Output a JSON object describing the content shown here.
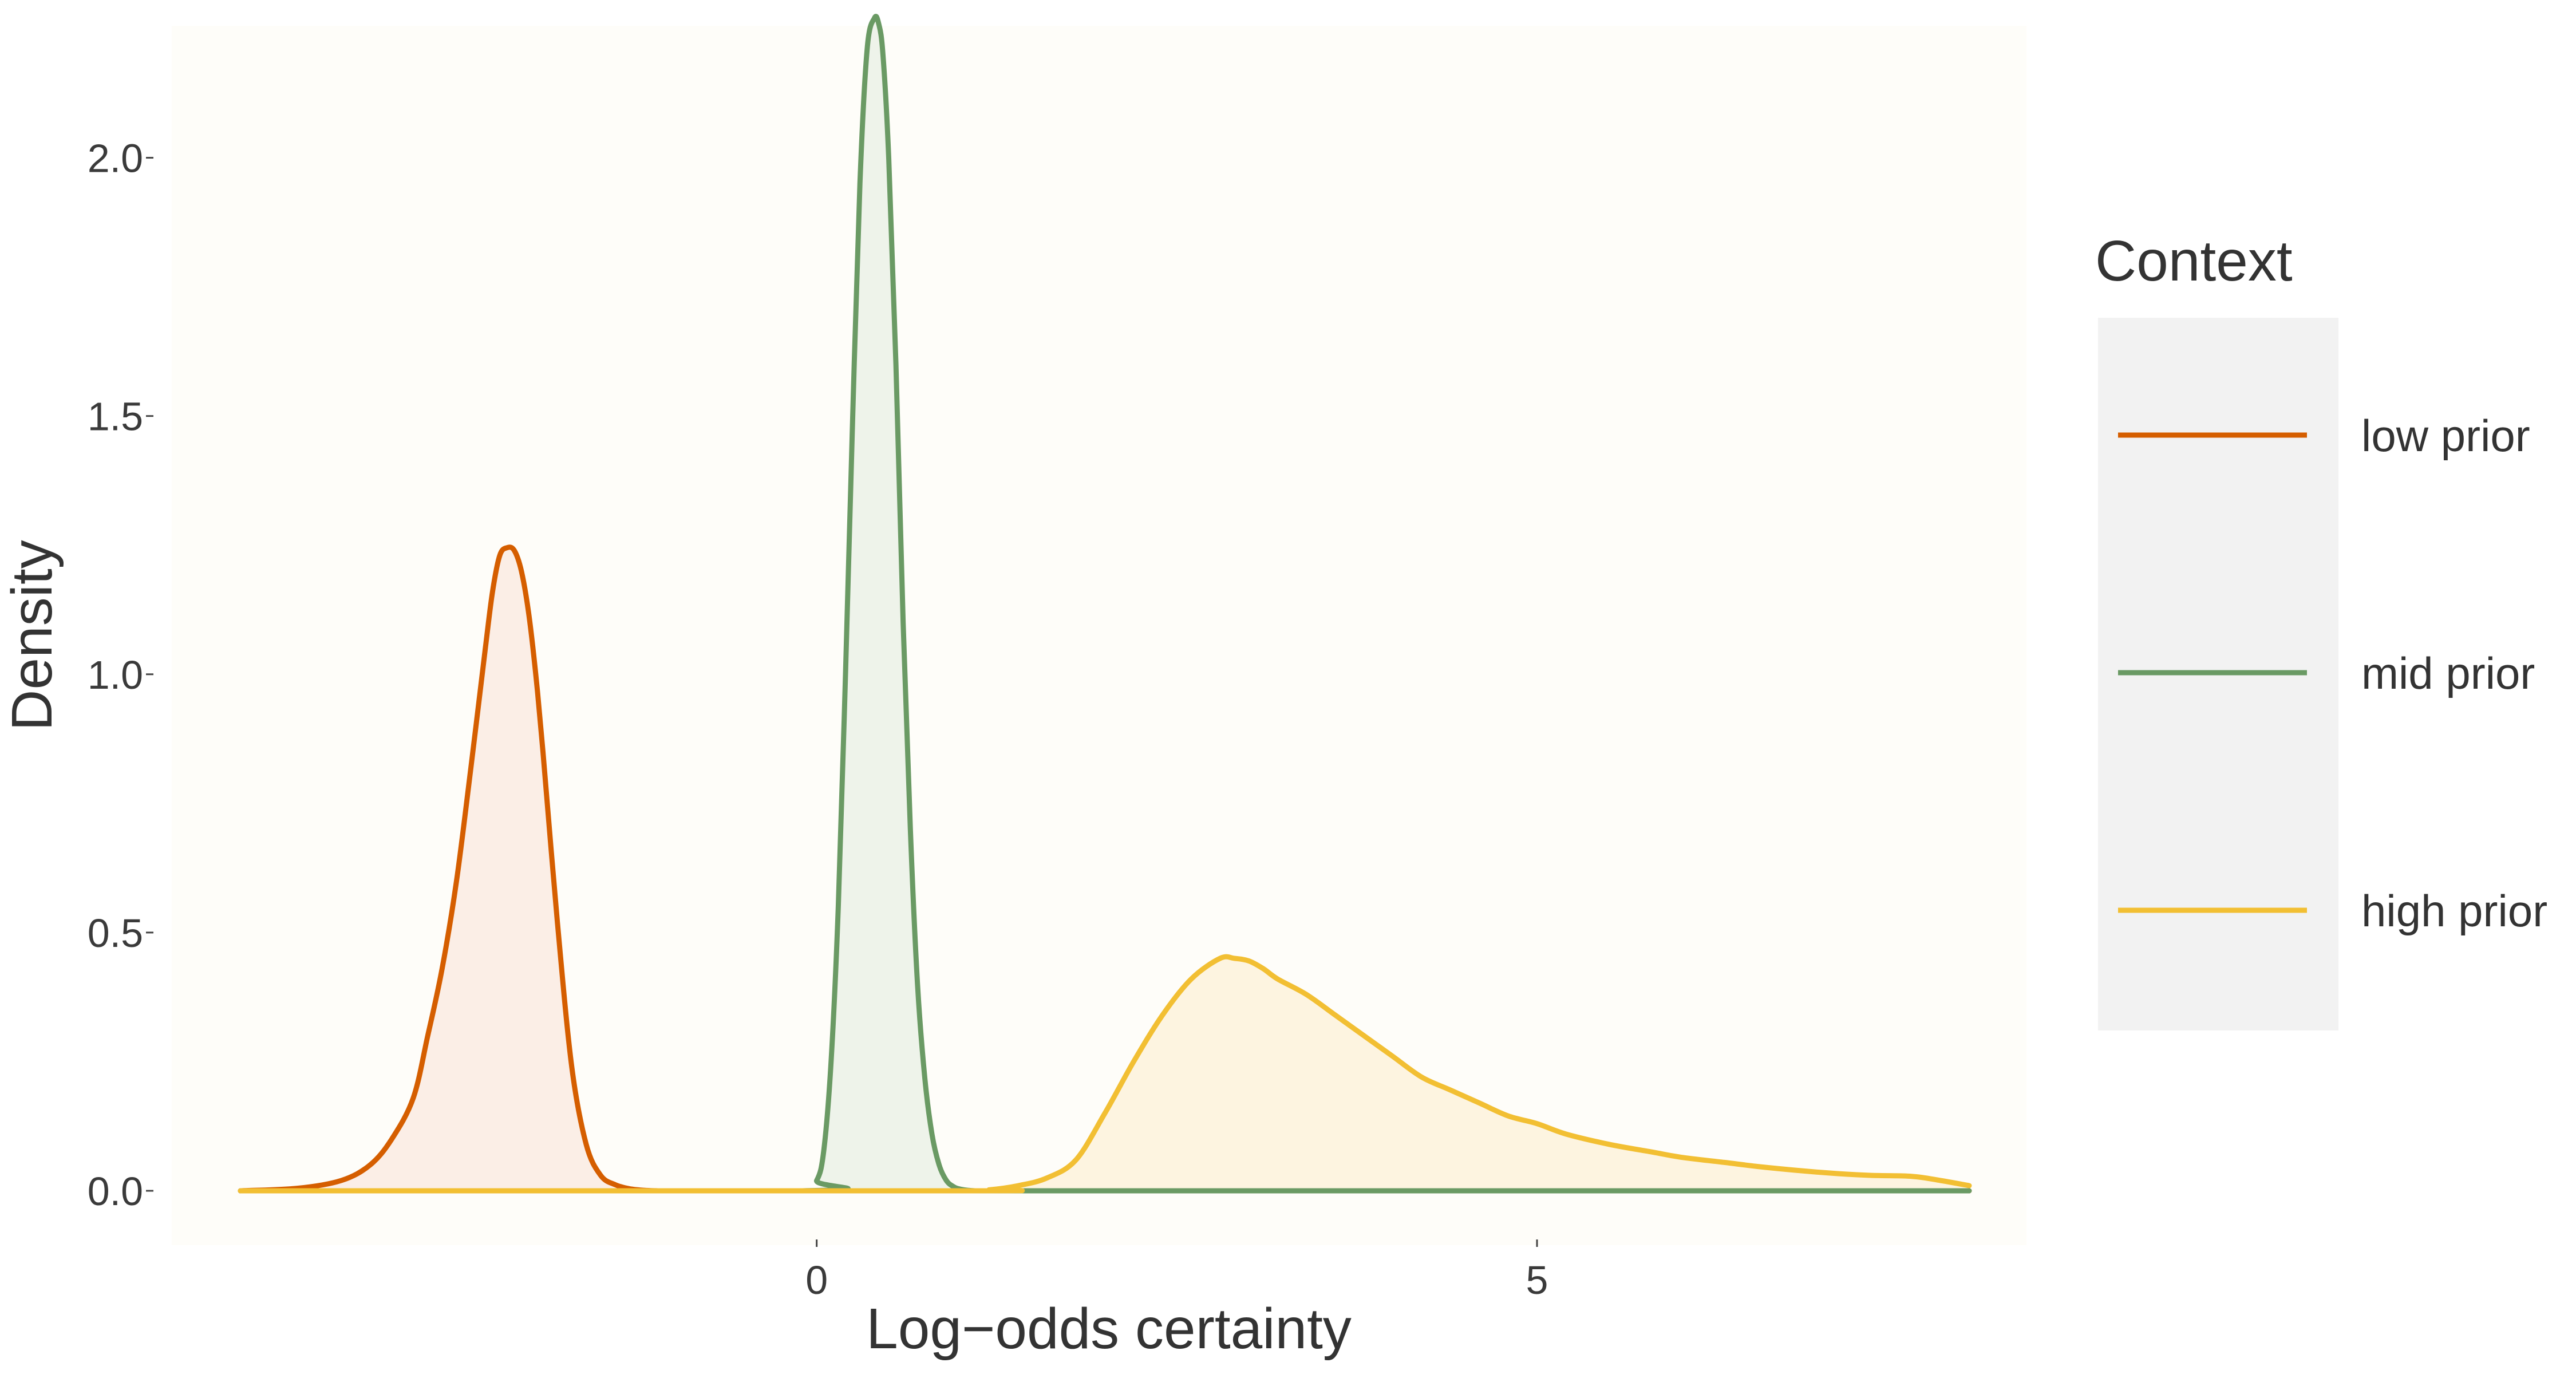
{
  "chart_data": {
    "type": "area",
    "title": "",
    "xlabel": "Log−odds certainty",
    "ylabel": "Density",
    "xlim": [
      -4.0,
      8.0
    ],
    "ylim": [
      0.0,
      2.25
    ],
    "x_ticks": [
      0,
      5
    ],
    "x_tick_labels": [
      "0",
      "5"
    ],
    "y_ticks": [
      0.0,
      0.5,
      1.0,
      1.5,
      2.0
    ],
    "y_tick_labels": [
      "0.0",
      "0.5",
      "1.0",
      "1.5",
      "2.0"
    ],
    "grid": false,
    "legend": {
      "title": "Context",
      "position": "right"
    },
    "series": [
      {
        "name": "low prior",
        "color": "#d55e00",
        "fill": "#fbeee6",
        "x": [
          -4.0,
          -3.6,
          -3.3,
          -3.1,
          -2.95,
          -2.8,
          -2.7,
          -2.6,
          -2.5,
          -2.4,
          -2.3,
          -2.25,
          -2.2,
          -2.15,
          -2.1,
          -2.05,
          -2.0,
          -1.95,
          -1.9,
          -1.8,
          -1.7,
          -1.6,
          -1.5,
          -1.4,
          -1.3,
          -1.2,
          -1.1,
          -1.0,
          -0.9,
          -0.8,
          -0.7,
          0.0,
          8.0
        ],
        "y": [
          0.0,
          0.005,
          0.02,
          0.05,
          0.1,
          0.18,
          0.3,
          0.43,
          0.6,
          0.82,
          1.05,
          1.16,
          1.23,
          1.245,
          1.24,
          1.2,
          1.12,
          1.0,
          0.85,
          0.52,
          0.24,
          0.09,
          0.03,
          0.012,
          0.004,
          0.001,
          0.0,
          0.0,
          0.0,
          0.0,
          0.0,
          0.0,
          0.0
        ]
      },
      {
        "name": "mid prior",
        "color": "#6a9a64",
        "fill": "#eef3ea",
        "x": [
          -4.0,
          -0.1,
          0.0,
          0.05,
          0.1,
          0.15,
          0.2,
          0.25,
          0.3,
          0.35,
          0.4,
          0.43,
          0.46,
          0.5,
          0.55,
          0.6,
          0.65,
          0.7,
          0.75,
          0.8,
          0.85,
          0.9,
          0.95,
          1.0,
          1.1,
          1.3,
          8.0
        ],
        "y": [
          0.0,
          0.0,
          0.02,
          0.08,
          0.25,
          0.55,
          1.0,
          1.5,
          1.95,
          2.21,
          2.27,
          2.26,
          2.2,
          2.0,
          1.6,
          1.1,
          0.7,
          0.4,
          0.22,
          0.11,
          0.05,
          0.02,
          0.008,
          0.003,
          0.0,
          0.0,
          0.0
        ]
      },
      {
        "name": "high prior",
        "color": "#f2bf33",
        "fill": "#fdf4e0",
        "x": [
          -4.0,
          1.0,
          1.2,
          1.4,
          1.6,
          1.8,
          2.0,
          2.2,
          2.4,
          2.6,
          2.8,
          2.9,
          3.0,
          3.1,
          3.2,
          3.4,
          3.6,
          3.8,
          4.0,
          4.2,
          4.4,
          4.6,
          4.8,
          5.0,
          5.2,
          5.5,
          5.8,
          6.0,
          6.3,
          6.6,
          7.0,
          7.3,
          7.6,
          7.8,
          8.0
        ],
        "y": [
          0.0,
          0.0,
          0.002,
          0.01,
          0.025,
          0.06,
          0.15,
          0.25,
          0.34,
          0.41,
          0.45,
          0.45,
          0.445,
          0.43,
          0.41,
          0.38,
          0.34,
          0.3,
          0.26,
          0.22,
          0.195,
          0.17,
          0.145,
          0.13,
          0.11,
          0.09,
          0.075,
          0.065,
          0.055,
          0.045,
          0.035,
          0.03,
          0.028,
          0.02,
          0.01
        ]
      }
    ]
  }
}
